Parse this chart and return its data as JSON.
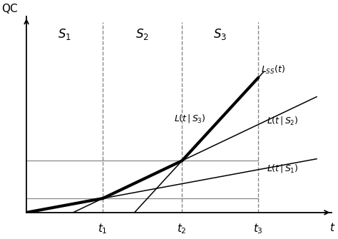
{
  "t1": 0.27,
  "t2": 0.55,
  "t3": 0.82,
  "xlim": [
    0,
    1.08
  ],
  "ylim": [
    0,
    1.05
  ],
  "ylabel": "QC",
  "xlabel": "t",
  "s1_label": "$S_1$",
  "s2_label": "$S_2$",
  "s3_label": "$S_3$",
  "t1_label": "$t_1$",
  "t2_label": "$t_2$",
  "t3_label": "$t_3$",
  "ls_label": "$L_{SS}(t)$",
  "ls1_label": "$L(t\\,|\\,S_1)$",
  "ls2_label": "$L(t\\,|\\,S_2)$",
  "ls3_label": "$L(t\\,|\\,S_3)$",
  "slope_s1": 0.28,
  "slope_s2": 0.72,
  "slope_s3": 1.65,
  "background_color": "#ffffff",
  "line_color": "#000000",
  "dashed_color": "#888888",
  "hline_color": "#888888",
  "thick_lw": 3.0,
  "thin_lw": 1.1,
  "hline_lw": 0.9,
  "dashed_lw": 1.0
}
